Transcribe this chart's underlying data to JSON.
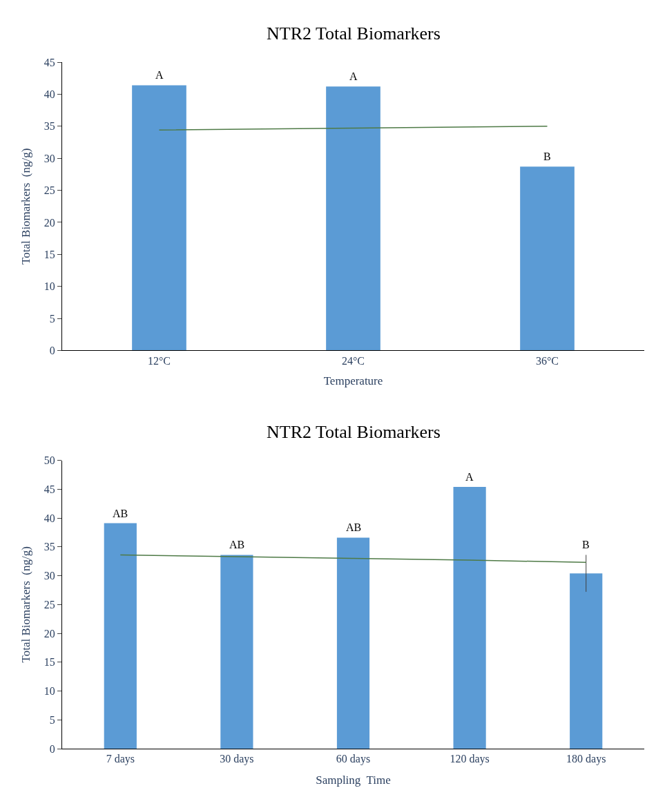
{
  "chart_data": [
    {
      "type": "bar",
      "title": "NTR2 Total Biomarkers",
      "xlabel": "Temperature",
      "ylabel": "Total Biomarkers  (ng/g)",
      "categories": [
        "12°C",
        "24°C",
        "36°C"
      ],
      "series": [
        {
          "color": "#5b9bd5",
          "values": [
            41.4,
            41.2,
            28.7
          ],
          "value_labels": [
            "A",
            "A",
            "B"
          ]
        },
        {
          "type": "line",
          "color": "#4e7a46",
          "values": [
            34.4,
            34.7,
            35.0
          ]
        }
      ],
      "ylim": [
        0,
        45
      ],
      "yticks": [
        0,
        5,
        10,
        15,
        20,
        25,
        30,
        35,
        40,
        45
      ],
      "grid": false
    },
    {
      "type": "bar",
      "title": "NTR2 Total Biomarkers",
      "xlabel": "Sampling  Time",
      "ylabel": "Total Biomarkers  (ng/g)",
      "categories": [
        "7 days",
        "30 days",
        "60 days",
        "120 days",
        "180 days"
      ],
      "series": [
        {
          "color": "#5b9bd5",
          "values": [
            39.1,
            33.6,
            36.6,
            45.4,
            30.4
          ],
          "errors": [
            null,
            null,
            null,
            null,
            3.2
          ],
          "value_labels": [
            "AB",
            "AB",
            "AB",
            "A",
            "B"
          ]
        },
        {
          "type": "line",
          "color": "#4e7a46",
          "values": [
            33.6,
            33.3,
            33.0,
            32.7,
            32.3
          ]
        }
      ],
      "ylim": [
        0,
        50
      ],
      "yticks": [
        0,
        5,
        10,
        15,
        20,
        25,
        30,
        35,
        40,
        45,
        50
      ],
      "grid": false
    }
  ]
}
